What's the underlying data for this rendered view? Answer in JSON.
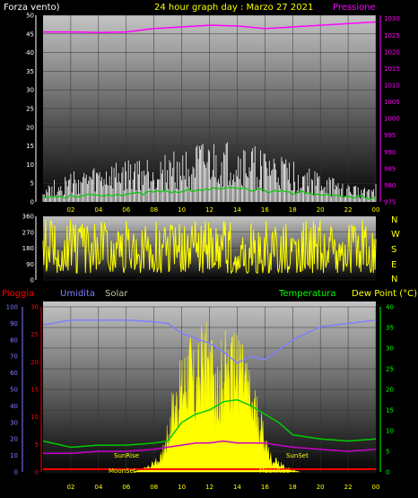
{
  "header": {
    "wind_label": "Forza vento)",
    "title": "24 hour graph day : Marzo 27 2021",
    "pressure_label": "Pressione"
  },
  "bottom_labels": {
    "rain": "Pioggia",
    "humidity": "Umidita",
    "solar": "Solar",
    "temperature": "Temperatura",
    "dewpoint": "Dew Point (°C)",
    "sunrise": "SunRise",
    "sunset": "SunSet",
    "moonset": "MoonSet",
    "moonrise": "MoonRise"
  },
  "direction_letters": [
    "N",
    "W",
    "S",
    "E",
    "N"
  ],
  "colors": {
    "background": "#000000",
    "wind_gust": "#ffffff",
    "wind_avg": "#00cc00",
    "pressure": "#ff00ff",
    "direction": "#ffff00",
    "rain": "#ff0000",
    "humidity": "#8080ff",
    "solar": "#ffff00",
    "temperature": "#00cc00",
    "dewpoint": "#cc00cc",
    "time_ticks": "#ffff00",
    "sun_labels": "#ffff00"
  },
  "chart_data": [
    {
      "type": "line",
      "name": "wind-pressure",
      "x_ticks": [
        "02",
        "04",
        "06",
        "08",
        "10",
        "12",
        "14",
        "16",
        "18",
        "20",
        "22",
        "00"
      ],
      "y_left_ticks": [
        0,
        5,
        10,
        15,
        20,
        25,
        30,
        35,
        40,
        45,
        50
      ],
      "y_right_ticks": [
        975,
        980,
        985,
        990,
        995,
        1000,
        1005,
        1010,
        1015,
        1020,
        1025,
        1030
      ],
      "ylim_left": [
        0,
        50
      ],
      "ylim_right": [
        975,
        1031
      ],
      "pressure": {
        "x": [
          0,
          2,
          4,
          6,
          8,
          10,
          12,
          14,
          16,
          18,
          20,
          22,
          24
        ],
        "values": [
          1026,
          1026,
          1025.8,
          1026,
          1027,
          1027.5,
          1028,
          1027.8,
          1027,
          1027.5,
          1028,
          1028.5,
          1029
        ]
      },
      "wind_gust": {
        "x": [
          0,
          2,
          4,
          6,
          8,
          10,
          12,
          14,
          16,
          18,
          20,
          22,
          24
        ],
        "values": [
          3,
          5,
          6,
          7,
          8,
          9,
          10,
          10,
          9,
          7,
          5,
          3,
          3
        ]
      },
      "wind_avg": {
        "x": [
          0,
          2,
          4,
          6,
          8,
          10,
          12,
          14,
          16,
          18,
          20,
          22,
          24
        ],
        "values": [
          1,
          1.5,
          2,
          2,
          2.5,
          3,
          3.5,
          3.5,
          3,
          2.5,
          2,
          1.5,
          1
        ]
      }
    },
    {
      "type": "line",
      "name": "wind-direction",
      "y_ticks": [
        0,
        90,
        180,
        270,
        360
      ],
      "ylim": [
        0,
        360
      ],
      "values_range": [
        40,
        360
      ]
    },
    {
      "type": "line",
      "name": "rain-humidity-solar-temperature",
      "y_rain_ticks": [
        0,
        5,
        10,
        15,
        20,
        25,
        30
      ],
      "ylim_rain": [
        0,
        30
      ],
      "y_hum_ticks": [
        0,
        10,
        20,
        30,
        40,
        50,
        60,
        70,
        80,
        90,
        100
      ],
      "ylim_hum": [
        0,
        100
      ],
      "y_temp_ticks": [
        0,
        5,
        10,
        15,
        20,
        25,
        30,
        35,
        40
      ],
      "ylim_temp": [
        0,
        40
      ],
      "humidity": {
        "x": [
          0,
          2,
          4,
          6,
          8,
          9,
          10,
          11,
          12,
          13,
          14,
          15,
          16,
          17,
          18,
          20,
          22,
          24
        ],
        "values": [
          89,
          92,
          92,
          92,
          91,
          90,
          84,
          81,
          78,
          73,
          66,
          70,
          68,
          74,
          80,
          88,
          90,
          92
        ]
      },
      "temperature": {
        "x": [
          0,
          2,
          4,
          6,
          8,
          9,
          10,
          11,
          12,
          13,
          14,
          15,
          16,
          17,
          18,
          20,
          22,
          24
        ],
        "values": [
          7.5,
          6,
          6.5,
          6.5,
          7,
          7.5,
          12,
          14,
          15,
          17,
          17.5,
          16,
          14,
          12,
          9,
          8,
          7.5,
          8
        ]
      },
      "dewpoint": {
        "x": [
          0,
          2,
          4,
          6,
          8,
          9,
          10,
          11,
          12,
          13,
          14,
          15,
          16,
          17,
          18,
          20,
          22,
          24
        ],
        "values": [
          4.5,
          4.5,
          5,
          5,
          5.5,
          6,
          6.5,
          7,
          7,
          7.5,
          7,
          7,
          7,
          6.5,
          6,
          5.5,
          5,
          5.5
        ]
      },
      "rain": {
        "x": [
          0,
          24
        ],
        "values": [
          0.5,
          0.5
        ]
      },
      "solar": {
        "x": [
          6.5,
          7.5,
          8.5,
          9,
          9.5,
          10,
          10.5,
          11,
          11.5,
          12,
          12.5,
          13,
          13.5,
          14,
          14.5,
          15,
          15.5,
          16,
          16.5,
          17.5,
          18.5
        ],
        "values": [
          0,
          1,
          3,
          9,
          16,
          20,
          26,
          19,
          27,
          25,
          16,
          26,
          21,
          26,
          22,
          15,
          13,
          7,
          3,
          1,
          0
        ]
      }
    }
  ]
}
